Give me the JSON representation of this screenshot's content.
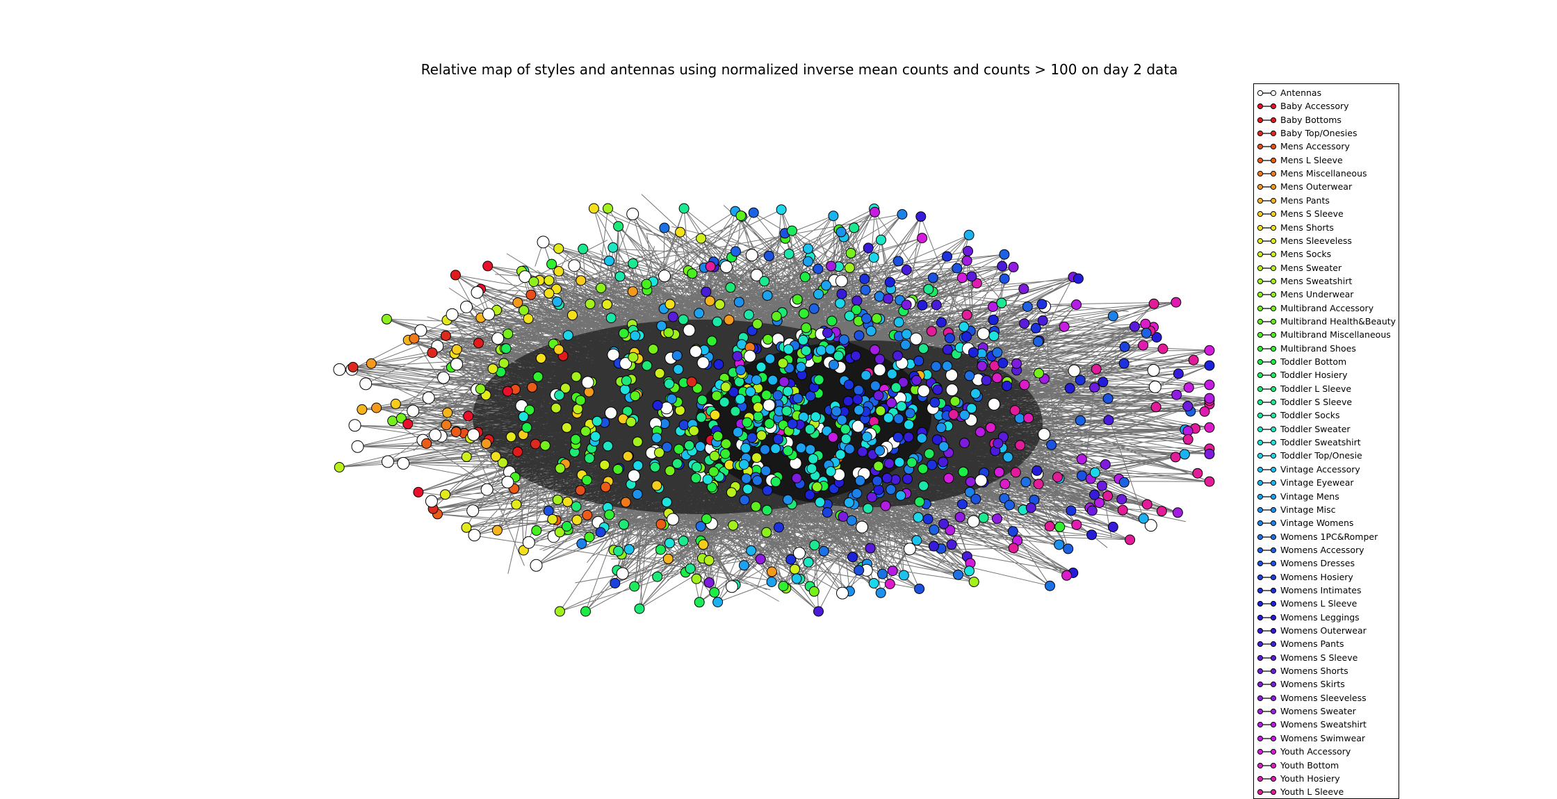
{
  "title": "Relative map of styles and antennas using normalized inverse mean counts and counts > 100 on day 2 data",
  "legend": [
    {
      "label": "Antennas",
      "color": "#ffffff"
    },
    {
      "label": "Baby Accessory",
      "color": "#e8102a"
    },
    {
      "label": "Baby Bottoms",
      "color": "#e31a1c"
    },
    {
      "label": "Baby Top/Onesies",
      "color": "#dd2a1e"
    },
    {
      "label": "Mens Accessory",
      "color": "#e84d1c"
    },
    {
      "label": "Mens L Sleeve",
      "color": "#ec5c19"
    },
    {
      "label": "Mens Miscellaneous",
      "color": "#ee7a1c"
    },
    {
      "label": "Mens Outerwear",
      "color": "#f39a1c"
    },
    {
      "label": "Mens Pants",
      "color": "#f5b41c"
    },
    {
      "label": "Mens S Sleeve",
      "color": "#f5cb1c"
    },
    {
      "label": "Mens Shorts",
      "color": "#f2e01c"
    },
    {
      "label": "Mens Sleeveless",
      "color": "#e2ea1c"
    },
    {
      "label": "Mens Socks",
      "color": "#cfee1c"
    },
    {
      "label": "Mens Sweater",
      "color": "#b8ef1c"
    },
    {
      "label": "Mens Sweatshirt",
      "color": "#a2f01c"
    },
    {
      "label": "Mens Underwear",
      "color": "#8cf01c"
    },
    {
      "label": "Multibrand Accessory",
      "color": "#76f01c"
    },
    {
      "label": "Multibrand Health&Beauty",
      "color": "#5ef01c"
    },
    {
      "label": "Multibrand Miscellaneous",
      "color": "#46f020"
    },
    {
      "label": "Multibrand Shoes",
      "color": "#30ef30"
    },
    {
      "label": "Toddler Bottom",
      "color": "#1ced44"
    },
    {
      "label": "Toddler Hosiery",
      "color": "#1ceb5c"
    },
    {
      "label": "Toddler L Sleeve",
      "color": "#1ce976"
    },
    {
      "label": "Toddler S Sleeve",
      "color": "#1ce890"
    },
    {
      "label": "Toddler Socks",
      "color": "#1ce7aa"
    },
    {
      "label": "Toddler Sweater",
      "color": "#1ce6c4"
    },
    {
      "label": "Toddler Sweatshirt",
      "color": "#1ce4dc"
    },
    {
      "label": "Toddler Top/Onesie",
      "color": "#1cd6ec"
    },
    {
      "label": "Vintage Accessory",
      "color": "#1cc2ee"
    },
    {
      "label": "Vintage Eyewear",
      "color": "#1cb2ef"
    },
    {
      "label": "Vintage Mens",
      "color": "#1ca2ee"
    },
    {
      "label": "Vintage Misc",
      "color": "#1c92ec"
    },
    {
      "label": "Vintage Womens",
      "color": "#1c82e8"
    },
    {
      "label": "Womens 1PC&Romper",
      "color": "#1c72e4"
    },
    {
      "label": "Womens Accessory",
      "color": "#1c62e2"
    },
    {
      "label": "Womens Dresses",
      "color": "#1c52e0"
    },
    {
      "label": "Womens Hosiery",
      "color": "#1c42de"
    },
    {
      "label": "Womens Intimates",
      "color": "#1c32dc"
    },
    {
      "label": "Womens L Sleeve",
      "color": "#1c22da"
    },
    {
      "label": "Womens Leggings",
      "color": "#241cd8"
    },
    {
      "label": "Womens Outerwear",
      "color": "#361cd8"
    },
    {
      "label": "Womens Pants",
      "color": "#481cd8"
    },
    {
      "label": "Womens S Sleeve",
      "color": "#5a1cda"
    },
    {
      "label": "Womens Shorts",
      "color": "#6c1cdc"
    },
    {
      "label": "Womens Skirts",
      "color": "#7e1cde"
    },
    {
      "label": "Womens Sleeveless",
      "color": "#901ce0"
    },
    {
      "label": "Womens Sweater",
      "color": "#a21ce2"
    },
    {
      "label": "Womens Sweatshirt",
      "color": "#b41ce4"
    },
    {
      "label": "Womens Swimwear",
      "color": "#c61ce2"
    },
    {
      "label": "Youth Accessory",
      "color": "#d41cdc"
    },
    {
      "label": "Youth Bottom",
      "color": "#dc1cc8"
    },
    {
      "label": "Youth Hosiery",
      "color": "#e01cb0"
    },
    {
      "label": "Youth L Sleeve",
      "color": "#e21c98"
    }
  ]
}
